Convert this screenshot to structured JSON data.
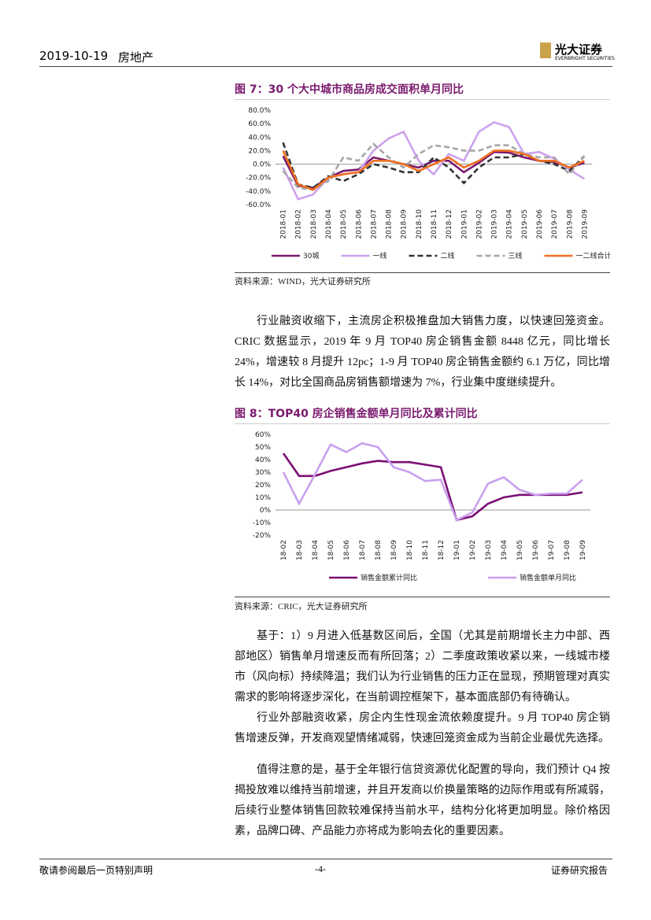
{
  "header": {
    "date": "2019-10-19",
    "sector": "房地产",
    "logo_cn": "光大证券",
    "logo_en": "EVERBRIGHT SECURITIES"
  },
  "figures": [
    {
      "title": "图 7：30 个大中城市商品房成交面积单月同比",
      "source": "资料来源：WIND，光大证券研究所",
      "chart_data": {
        "type": "line",
        "categories": [
          "2018-01",
          "2018-02",
          "2018-03",
          "2018-04",
          "2018-05",
          "2018-06",
          "2018-07",
          "2018-08",
          "2018-09",
          "2018-10",
          "2018-11",
          "2018-12",
          "2019-01",
          "2019-02",
          "2019-03",
          "2019-04",
          "2019-05",
          "2019-06",
          "2019-07",
          "2019-08",
          "2019-09"
        ],
        "series": [
          {
            "name": "30城",
            "color": "#7a1a6e",
            "dash": false,
            "values": [
              12,
              -32,
              -35,
              -20,
              -10,
              -8,
              10,
              5,
              0,
              -5,
              5,
              5,
              -12,
              2,
              18,
              17,
              10,
              5,
              3,
              -5,
              2
            ]
          },
          {
            "name": "一线",
            "color": "#cda2ee",
            "dash": false,
            "values": [
              -5,
              -52,
              -45,
              -20,
              -15,
              -12,
              20,
              38,
              48,
              5,
              -15,
              15,
              5,
              48,
              62,
              55,
              15,
              18,
              8,
              -8,
              -22
            ]
          },
          {
            "name": "二线",
            "color": "#333333",
            "dash": true,
            "values": [
              32,
              -30,
              -35,
              -18,
              -25,
              -15,
              0,
              -5,
              -12,
              -12,
              10,
              -5,
              -28,
              -5,
              10,
              10,
              15,
              5,
              0,
              -10,
              12
            ]
          },
          {
            "name": "三线",
            "color": "#a6a6a6",
            "dash": true,
            "values": [
              -10,
              -35,
              -38,
              -25,
              10,
              5,
              30,
              10,
              -5,
              15,
              28,
              25,
              20,
              20,
              28,
              28,
              15,
              10,
              10,
              -15,
              12
            ]
          },
          {
            "name": "一二线合计",
            "color": "#f07020",
            "dash": false,
            "values": [
              20,
              -30,
              -38,
              -20,
              -15,
              -12,
              5,
              5,
              0,
              -10,
              0,
              10,
              -5,
              5,
              20,
              20,
              15,
              5,
              5,
              -5,
              5
            ]
          }
        ],
        "ylim": [
          -60,
          80
        ],
        "yticks": [
          {
            "value": 80,
            "label": "80.0%"
          },
          {
            "value": 60,
            "label": "60.0%"
          },
          {
            "value": 40,
            "label": "40.0%"
          },
          {
            "value": 20,
            "label": "20.0%"
          },
          {
            "value": 0,
            "label": "0.0%"
          },
          {
            "value": -20,
            "label": "-20.0%"
          },
          {
            "value": -40,
            "label": "-40.0%"
          },
          {
            "value": -60,
            "label": "-60.0%"
          }
        ],
        "grid": false,
        "legend": "bottom"
      }
    },
    {
      "title": "图 8：TOP40 房企销售金额单月同比及累计同比",
      "source": "资料来源：CRIC，光大证券研究所",
      "chart_data": {
        "type": "line",
        "categories": [
          "18-02",
          "18-03",
          "18-04",
          "18-05",
          "18-06",
          "18-07",
          "18-08",
          "18-09",
          "18-10",
          "18-11",
          "18-12",
          "19-01",
          "19-02",
          "19-03",
          "19-04",
          "19-05",
          "19-06",
          "19-07",
          "19-08",
          "19-09"
        ],
        "series": [
          {
            "name": "销售金额累计同比",
            "color": "#7a0f74",
            "dash": false,
            "values": [
              45,
              27,
              27,
              31,
              34,
              37,
              39,
              38,
              38,
              36,
              34,
              -8,
              -5,
              5,
              10,
              12,
              12,
              12,
              12,
              14
            ]
          },
          {
            "name": "销售金额单月同比",
            "color": "#c9a0ee",
            "dash": false,
            "values": [
              30,
              5,
              28,
              52,
              46,
              53,
              50,
              34,
              30,
              23,
              24,
              -8,
              -2,
              21,
              26,
              16,
              12,
              13,
              13,
              24
            ]
          }
        ],
        "ylim": [
          -20,
          60
        ],
        "yticks": [
          {
            "value": 60,
            "label": "60%"
          },
          {
            "value": 50,
            "label": "50%"
          },
          {
            "value": 40,
            "label": "40%"
          },
          {
            "value": 30,
            "label": "30%"
          },
          {
            "value": 20,
            "label": "20%"
          },
          {
            "value": 10,
            "label": "10%"
          },
          {
            "value": 0,
            "label": "0%"
          },
          {
            "value": -10,
            "label": "-10%"
          },
          {
            "value": -20,
            "label": "-20%"
          }
        ],
        "grid": false,
        "legend": "bottom"
      }
    }
  ],
  "paragraphs": [
    "行业融资收缩下，主流房企积极推盘加大销售力度，以快速回笼资金。CRIC 数据显示，2019 年 9 月 TOP40 房企销售金额 8448 亿元，同比增长 24%，增速较 8 月提升 12pc；1-9 月 TOP40 房企销售金额约 6.1 万亿，同比增长 14%，对比全国商品房销售额增速为 7%，行业集中度继续提升。",
    "基于：1）9 月进入低基数区间后，全国（尤其是前期增长主力中部、西部地区）销售单月增速反而有所回落；2）二季度政策收紧以来，一线城市楼市（风向标）持续降温；我们认为行业销售的压力正在显现，预期管理对真实需求的影响将逐步深化，在当前调控框架下，基本面底部仍有待确认。",
    "行业外部融资收紧，房企内生性现金流依赖度提升。9 月 TOP40 房企销售增速反弹，开发商观望情绪减弱，快速回笼资金成为当前企业最优先选择。",
    "值得注意的是，基于全年银行信贷资源优化配置的导向，我们预计 Q4 按揭投放难以维持当前增速，并且开发商以价换量策略的边际作用或有所减弱，后续行业整体销售回款较难保持当前水平，结构分化将更加明显。除价格因素，品牌口碑、产品能力亦将成为影响去化的重要因素。"
  ],
  "footer": {
    "left": "敬请参阅最后一页特别声明",
    "page": "-4-",
    "right": "证券研究报告"
  }
}
